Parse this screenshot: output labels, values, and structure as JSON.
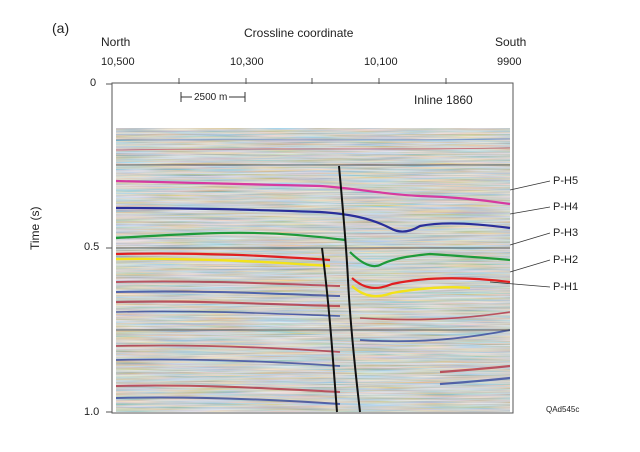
{
  "panel_label": "(a)",
  "x_axis": {
    "title": "Crossline coordinate",
    "left_direction": "North",
    "right_direction": "South",
    "ticks": [
      "10,500",
      "10,300",
      "10,100",
      "9900"
    ]
  },
  "y_axis": {
    "title": "Time (s)",
    "ticks": [
      "0",
      "0.5",
      "1.0"
    ],
    "range": [
      0,
      1.0
    ]
  },
  "scale_bar": "2500 m",
  "section_label": "Inline 1860",
  "horizons": [
    {
      "name": "P-H5",
      "color": "#d63aa0"
    },
    {
      "name": "P-H4",
      "color": "#2a2f9a"
    },
    {
      "name": "P-H3",
      "color": "#1e9a3a"
    },
    {
      "name": "P-H2",
      "color": "#e02020"
    },
    {
      "name": "P-H1",
      "color": "#f2e21a"
    }
  ],
  "figure_code": "QAd545c"
}
